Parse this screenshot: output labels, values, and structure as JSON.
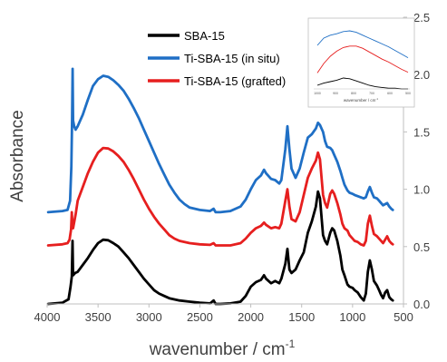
{
  "chart_data": {
    "type": "line",
    "xlabel": "wavenumber / cm",
    "xlabel_sup": "-1",
    "ylabel": "Absorbance",
    "xlim": [
      4000,
      500
    ],
    "ylim": [
      0,
      2.5
    ],
    "x_ticks": [
      4000,
      3500,
      3000,
      2500,
      2000,
      1500,
      1000,
      500
    ],
    "y_ticks": [
      "0.0",
      "0.5",
      "1.0",
      "1.5",
      "2.0",
      "2.5"
    ],
    "y_axis_side": "right",
    "grid": false,
    "legend_position": "top-center",
    "series": [
      {
        "name": "SBA-15",
        "color": "#000000",
        "points": [
          [
            3990,
            0.0
          ],
          [
            3850,
            0.01
          ],
          [
            3790,
            0.04
          ],
          [
            3770,
            0.15
          ],
          [
            3758,
            0.24
          ],
          [
            3751,
            0.55
          ],
          [
            3745,
            0.25
          ],
          [
            3725,
            0.27
          ],
          [
            3700,
            0.28
          ],
          [
            3650,
            0.34
          ],
          [
            3600,
            0.4
          ],
          [
            3550,
            0.47
          ],
          [
            3500,
            0.53
          ],
          [
            3450,
            0.56
          ],
          [
            3400,
            0.555
          ],
          [
            3350,
            0.53
          ],
          [
            3300,
            0.5
          ],
          [
            3250,
            0.45
          ],
          [
            3200,
            0.4
          ],
          [
            3150,
            0.34
          ],
          [
            3100,
            0.28
          ],
          [
            3050,
            0.22
          ],
          [
            3000,
            0.17
          ],
          [
            2950,
            0.12
          ],
          [
            2900,
            0.09
          ],
          [
            2850,
            0.07
          ],
          [
            2800,
            0.05
          ],
          [
            2700,
            0.03
          ],
          [
            2600,
            0.02
          ],
          [
            2500,
            0.01
          ],
          [
            2400,
            0.005
          ],
          [
            2365,
            0.03
          ],
          [
            2345,
            0.0
          ],
          [
            2300,
            0.0
          ],
          [
            2200,
            0.005
          ],
          [
            2100,
            0.02
          ],
          [
            2050,
            0.07
          ],
          [
            2000,
            0.15
          ],
          [
            1950,
            0.19
          ],
          [
            1900,
            0.21
          ],
          [
            1870,
            0.25
          ],
          [
            1850,
            0.22
          ],
          [
            1800,
            0.18
          ],
          [
            1760,
            0.2
          ],
          [
            1720,
            0.18
          ],
          [
            1700,
            0.22
          ],
          [
            1660,
            0.35
          ],
          [
            1640,
            0.48
          ],
          [
            1620,
            0.3
          ],
          [
            1600,
            0.27
          ],
          [
            1560,
            0.3
          ],
          [
            1520,
            0.38
          ],
          [
            1480,
            0.45
          ],
          [
            1440,
            0.62
          ],
          [
            1400,
            0.72
          ],
          [
            1360,
            0.85
          ],
          [
            1340,
            0.98
          ],
          [
            1320,
            0.92
          ],
          [
            1290,
            0.6
          ],
          [
            1270,
            0.55
          ],
          [
            1250,
            0.52
          ],
          [
            1220,
            0.62
          ],
          [
            1200,
            0.66
          ],
          [
            1180,
            0.64
          ],
          [
            1150,
            0.55
          ],
          [
            1120,
            0.42
          ],
          [
            1100,
            0.3
          ],
          [
            1080,
            0.25
          ],
          [
            1050,
            0.17
          ],
          [
            1030,
            0.15
          ],
          [
            1000,
            0.14
          ],
          [
            980,
            0.12
          ],
          [
            950,
            0.1
          ],
          [
            920,
            0.06
          ],
          [
            890,
            0.03
          ],
          [
            870,
            0.09
          ],
          [
            850,
            0.28
          ],
          [
            830,
            0.38
          ],
          [
            810,
            0.3
          ],
          [
            790,
            0.2
          ],
          [
            760,
            0.16
          ],
          [
            740,
            0.12
          ],
          [
            720,
            0.08
          ],
          [
            700,
            0.05
          ],
          [
            680,
            0.1
          ],
          [
            660,
            0.12
          ],
          [
            640,
            0.06
          ],
          [
            620,
            0.04
          ],
          [
            605,
            0.03
          ]
        ]
      },
      {
        "name": "Ti-SBA-15 (in situ)",
        "color": "#1f6fc5",
        "points": [
          [
            3990,
            0.8
          ],
          [
            3850,
            0.81
          ],
          [
            3800,
            0.82
          ],
          [
            3775,
            0.9
          ],
          [
            3762,
            1.2
          ],
          [
            3755,
            1.6
          ],
          [
            3750,
            2.05
          ],
          [
            3745,
            1.6
          ],
          [
            3735,
            1.55
          ],
          [
            3720,
            1.52
          ],
          [
            3700,
            1.55
          ],
          [
            3650,
            1.65
          ],
          [
            3600,
            1.78
          ],
          [
            3550,
            1.9
          ],
          [
            3500,
            1.96
          ],
          [
            3450,
            1.99
          ],
          [
            3400,
            1.98
          ],
          [
            3350,
            1.95
          ],
          [
            3300,
            1.91
          ],
          [
            3250,
            1.86
          ],
          [
            3200,
            1.79
          ],
          [
            3150,
            1.71
          ],
          [
            3100,
            1.62
          ],
          [
            3050,
            1.52
          ],
          [
            3000,
            1.42
          ],
          [
            2950,
            1.32
          ],
          [
            2900,
            1.22
          ],
          [
            2850,
            1.13
          ],
          [
            2800,
            1.04
          ],
          [
            2750,
            0.97
          ],
          [
            2700,
            0.91
          ],
          [
            2650,
            0.87
          ],
          [
            2600,
            0.84
          ],
          [
            2500,
            0.82
          ],
          [
            2400,
            0.81
          ],
          [
            2365,
            0.83
          ],
          [
            2345,
            0.8
          ],
          [
            2300,
            0.8
          ],
          [
            2200,
            0.81
          ],
          [
            2100,
            0.85
          ],
          [
            2050,
            0.91
          ],
          [
            2000,
            1.0
          ],
          [
            1950,
            1.08
          ],
          [
            1900,
            1.12
          ],
          [
            1870,
            1.17
          ],
          [
            1850,
            1.14
          ],
          [
            1800,
            1.09
          ],
          [
            1760,
            1.08
          ],
          [
            1720,
            1.05
          ],
          [
            1700,
            1.08
          ],
          [
            1660,
            1.35
          ],
          [
            1640,
            1.55
          ],
          [
            1620,
            1.35
          ],
          [
            1600,
            1.18
          ],
          [
            1560,
            1.1
          ],
          [
            1520,
            1.18
          ],
          [
            1480,
            1.32
          ],
          [
            1440,
            1.45
          ],
          [
            1400,
            1.48
          ],
          [
            1360,
            1.53
          ],
          [
            1340,
            1.58
          ],
          [
            1320,
            1.56
          ],
          [
            1290,
            1.5
          ],
          [
            1270,
            1.42
          ],
          [
            1250,
            1.37
          ],
          [
            1220,
            1.36
          ],
          [
            1200,
            1.34
          ],
          [
            1180,
            1.3
          ],
          [
            1150,
            1.24
          ],
          [
            1120,
            1.16
          ],
          [
            1100,
            1.1
          ],
          [
            1080,
            1.04
          ],
          [
            1050,
            0.99
          ],
          [
            1030,
            0.97
          ],
          [
            1000,
            0.96
          ],
          [
            980,
            0.95
          ],
          [
            950,
            0.94
          ],
          [
            920,
            0.93
          ],
          [
            890,
            0.92
          ],
          [
            870,
            0.93
          ],
          [
            850,
            0.98
          ],
          [
            830,
            1.02
          ],
          [
            810,
            0.97
          ],
          [
            790,
            0.93
          ],
          [
            760,
            0.92
          ],
          [
            740,
            0.9
          ],
          [
            720,
            0.88
          ],
          [
            700,
            0.86
          ],
          [
            680,
            0.87
          ],
          [
            660,
            0.88
          ],
          [
            640,
            0.85
          ],
          [
            620,
            0.83
          ],
          [
            605,
            0.82
          ]
        ]
      },
      {
        "name": "Ti-SBA-15 (grafted)",
        "color": "#e61f1f",
        "points": [
          [
            3990,
            0.51
          ],
          [
            3850,
            0.52
          ],
          [
            3800,
            0.53
          ],
          [
            3780,
            0.56
          ],
          [
            3765,
            0.65
          ],
          [
            3758,
            0.8
          ],
          [
            3752,
            0.7
          ],
          [
            3745,
            0.66
          ],
          [
            3720,
            0.78
          ],
          [
            3700,
            0.9
          ],
          [
            3650,
            1.02
          ],
          [
            3600,
            1.14
          ],
          [
            3550,
            1.24
          ],
          [
            3500,
            1.32
          ],
          [
            3450,
            1.36
          ],
          [
            3400,
            1.355
          ],
          [
            3350,
            1.33
          ],
          [
            3300,
            1.29
          ],
          [
            3250,
            1.24
          ],
          [
            3200,
            1.17
          ],
          [
            3150,
            1.09
          ],
          [
            3100,
            1.0
          ],
          [
            3050,
            0.91
          ],
          [
            3000,
            0.83
          ],
          [
            2950,
            0.76
          ],
          [
            2900,
            0.7
          ],
          [
            2850,
            0.65
          ],
          [
            2800,
            0.6
          ],
          [
            2750,
            0.57
          ],
          [
            2700,
            0.55
          ],
          [
            2600,
            0.53
          ],
          [
            2500,
            0.52
          ],
          [
            2400,
            0.515
          ],
          [
            2365,
            0.53
          ],
          [
            2345,
            0.51
          ],
          [
            2300,
            0.51
          ],
          [
            2200,
            0.51
          ],
          [
            2100,
            0.53
          ],
          [
            2050,
            0.57
          ],
          [
            2000,
            0.62
          ],
          [
            1950,
            0.66
          ],
          [
            1900,
            0.68
          ],
          [
            1870,
            0.71
          ],
          [
            1850,
            0.69
          ],
          [
            1800,
            0.66
          ],
          [
            1760,
            0.67
          ],
          [
            1720,
            0.66
          ],
          [
            1700,
            0.7
          ],
          [
            1660,
            0.9
          ],
          [
            1640,
            1.0
          ],
          [
            1620,
            0.85
          ],
          [
            1600,
            0.74
          ],
          [
            1560,
            0.72
          ],
          [
            1520,
            0.8
          ],
          [
            1480,
            0.95
          ],
          [
            1440,
            1.1
          ],
          [
            1400,
            1.18
          ],
          [
            1360,
            1.25
          ],
          [
            1340,
            1.32
          ],
          [
            1320,
            1.26
          ],
          [
            1290,
            0.95
          ],
          [
            1270,
            0.88
          ],
          [
            1250,
            0.84
          ],
          [
            1220,
            0.96
          ],
          [
            1200,
            0.99
          ],
          [
            1180,
            0.96
          ],
          [
            1150,
            0.88
          ],
          [
            1120,
            0.78
          ],
          [
            1100,
            0.7
          ],
          [
            1080,
            0.66
          ],
          [
            1050,
            0.64
          ],
          [
            1030,
            0.6
          ],
          [
            1000,
            0.57
          ],
          [
            980,
            0.55
          ],
          [
            950,
            0.54
          ],
          [
            920,
            0.52
          ],
          [
            890,
            0.51
          ],
          [
            870,
            0.55
          ],
          [
            850,
            0.7
          ],
          [
            830,
            0.77
          ],
          [
            810,
            0.68
          ],
          [
            790,
            0.61
          ],
          [
            760,
            0.59
          ],
          [
            740,
            0.57
          ],
          [
            720,
            0.55
          ],
          [
            700,
            0.53
          ],
          [
            680,
            0.56
          ],
          [
            660,
            0.59
          ],
          [
            640,
            0.55
          ],
          [
            620,
            0.53
          ],
          [
            605,
            0.52
          ]
        ]
      }
    ],
    "inset": {
      "xlabel": "wavenumber / cm",
      "xlabel_sup": "-1",
      "x_ticks": [
        "1000",
        "900",
        "800",
        "700",
        "600",
        "500"
      ],
      "series": [
        {
          "color": "#1f6fc5",
          "values": [
            0.6,
            0.7,
            0.74,
            0.76,
            0.79,
            0.8,
            0.78,
            0.74,
            0.7,
            0.66,
            0.62,
            0.58,
            0.53,
            0.48,
            0.43
          ]
        },
        {
          "color": "#e61f1f",
          "values": [
            0.22,
            0.35,
            0.45,
            0.52,
            0.57,
            0.59,
            0.59,
            0.56,
            0.51,
            0.46,
            0.41,
            0.37,
            0.32,
            0.27,
            0.23
          ]
        },
        {
          "color": "#000000",
          "values": [
            0.05,
            0.08,
            0.1,
            0.12,
            0.15,
            0.14,
            0.11,
            0.08,
            0.05,
            0.03,
            0.02,
            0.01,
            0.01,
            0.0,
            0.0
          ]
        }
      ]
    }
  }
}
